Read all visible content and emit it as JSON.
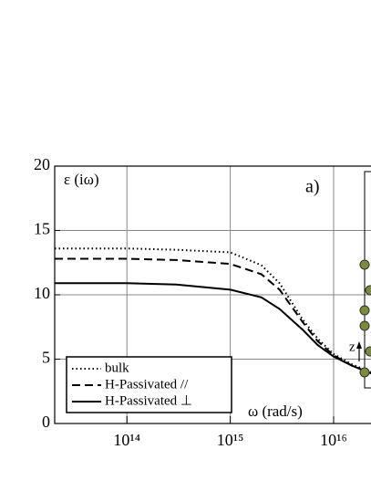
{
  "chart_data": {
    "type": "line",
    "y_label": "ε (iω)",
    "x_label": "ω (rad/s)",
    "annotation": "a)",
    "inset_label": "z",
    "xscale": "log",
    "grid": true,
    "legend_position": "lower left",
    "xlim": [
      20000000000000.0,
      2.3e+16
    ],
    "ylim": [
      0,
      20
    ],
    "xticks": [
      {
        "value": 100000000000000.0,
        "label": "10¹⁴"
      },
      {
        "value": 1000000000000000.0,
        "label": "10¹⁵"
      },
      {
        "value": 1e+16,
        "label": "10¹⁶"
      }
    ],
    "yticks": [
      0,
      5,
      10,
      15,
      20
    ],
    "x": [
      20000000000000.0,
      100000000000000.0,
      300000000000000.0,
      1000000000000000.0,
      2000000000000000.0,
      3000000000000000.0,
      5000000000000000.0,
      7000000000000000.0,
      1e+16,
      1.5e+16,
      2.3e+16
    ],
    "series": [
      {
        "name": "bulk",
        "color": "#000000",
        "style": "dotted",
        "values": [
          13.6,
          13.6,
          13.5,
          13.3,
          12.3,
          10.9,
          8.1,
          6.6,
          5.4,
          4.6,
          4.0
        ]
      },
      {
        "name": "H-Passivated //",
        "color": "#000000",
        "style": "dashed",
        "values": [
          12.8,
          12.8,
          12.7,
          12.4,
          11.6,
          10.4,
          7.9,
          6.4,
          5.3,
          4.5,
          3.9
        ]
      },
      {
        "name": "H-Passivated ⊥",
        "color": "#000000",
        "style": "solid",
        "values": [
          10.9,
          10.9,
          10.8,
          10.4,
          9.8,
          8.9,
          7.3,
          6.1,
          5.2,
          4.5,
          3.9
        ]
      }
    ]
  }
}
